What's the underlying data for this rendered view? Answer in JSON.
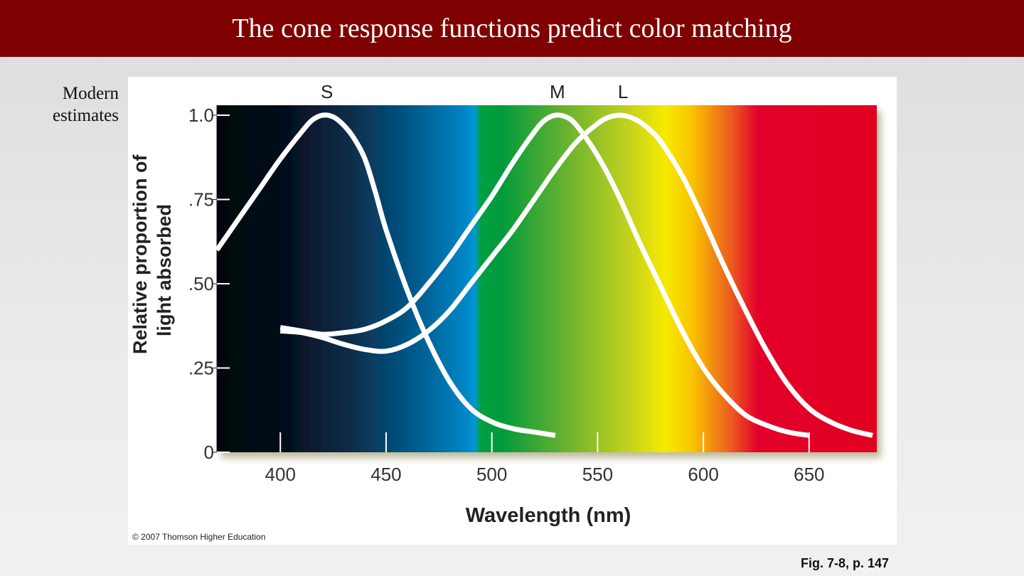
{
  "slide": {
    "title": "The cone response functions predict color matching",
    "side_label_line1": "Modern",
    "side_label_line2": "estimates",
    "figure_ref": "Fig. 7-8, p. 147",
    "colors": {
      "title_bar": "#7f0000",
      "curve": "#ffffff"
    }
  },
  "chart_data": {
    "type": "line",
    "title": "",
    "xlabel": "Wavelength (nm)",
    "ylabel_lines": [
      "Relative proportion of",
      "light absorbed"
    ],
    "xlim": [
      370,
      682
    ],
    "ylim": [
      0,
      1.0
    ],
    "x_ticks": [
      {
        "value": 400,
        "label": "400"
      },
      {
        "value": 450,
        "label": "450"
      },
      {
        "value": 500,
        "label": "500"
      },
      {
        "value": 550,
        "label": "550"
      },
      {
        "value": 600,
        "label": "600"
      },
      {
        "value": 650,
        "label": "650"
      }
    ],
    "y_ticks": [
      {
        "value": 0,
        "label": "0"
      },
      {
        "value": 0.25,
        "label": ".25"
      },
      {
        "value": 0.5,
        "label": ".50"
      },
      {
        "value": 0.75,
        "label": ".75"
      },
      {
        "value": 1.0,
        "label": "1.0"
      }
    ],
    "series": [
      {
        "name": "S",
        "peak_label": "S",
        "peak_nm": 422,
        "x": [
          370,
          380,
          390,
          400,
          410,
          415,
          420,
          425,
          430,
          435,
          440,
          445,
          450,
          460,
          470,
          480,
          490,
          500,
          510,
          520,
          530
        ],
        "y": [
          0.6,
          0.69,
          0.78,
          0.87,
          0.95,
          0.985,
          1.0,
          0.995,
          0.97,
          0.93,
          0.87,
          0.77,
          0.66,
          0.48,
          0.33,
          0.21,
          0.13,
          0.09,
          0.07,
          0.06,
          0.05
        ]
      },
      {
        "name": "M",
        "peak_label": "M",
        "peak_nm": 531,
        "x": [
          400,
          410,
          420,
          430,
          440,
          450,
          460,
          470,
          480,
          490,
          500,
          510,
          520,
          525,
          530,
          535,
          540,
          550,
          560,
          570,
          580,
          590,
          600,
          610,
          620,
          630,
          640,
          650
        ],
        "y": [
          0.37,
          0.36,
          0.35,
          0.355,
          0.365,
          0.39,
          0.43,
          0.5,
          0.58,
          0.67,
          0.76,
          0.86,
          0.95,
          0.985,
          1.0,
          0.995,
          0.97,
          0.88,
          0.76,
          0.62,
          0.49,
          0.36,
          0.25,
          0.17,
          0.11,
          0.08,
          0.06,
          0.05
        ]
      },
      {
        "name": "L",
        "peak_label": "L",
        "peak_nm": 562,
        "x": [
          400,
          410,
          420,
          430,
          440,
          450,
          460,
          470,
          480,
          490,
          500,
          510,
          520,
          530,
          540,
          550,
          555,
          560,
          565,
          570,
          575,
          580,
          590,
          600,
          610,
          620,
          630,
          640,
          650,
          660,
          670,
          680
        ],
        "y": [
          0.36,
          0.355,
          0.34,
          0.32,
          0.305,
          0.3,
          0.32,
          0.36,
          0.42,
          0.5,
          0.58,
          0.66,
          0.75,
          0.84,
          0.92,
          0.975,
          0.993,
          1.0,
          0.995,
          0.98,
          0.955,
          0.92,
          0.82,
          0.69,
          0.55,
          0.42,
          0.3,
          0.2,
          0.13,
          0.09,
          0.065,
          0.05
        ]
      }
    ]
  },
  "figure": {
    "copyright": "© 2007 Thomson Higher Education"
  }
}
